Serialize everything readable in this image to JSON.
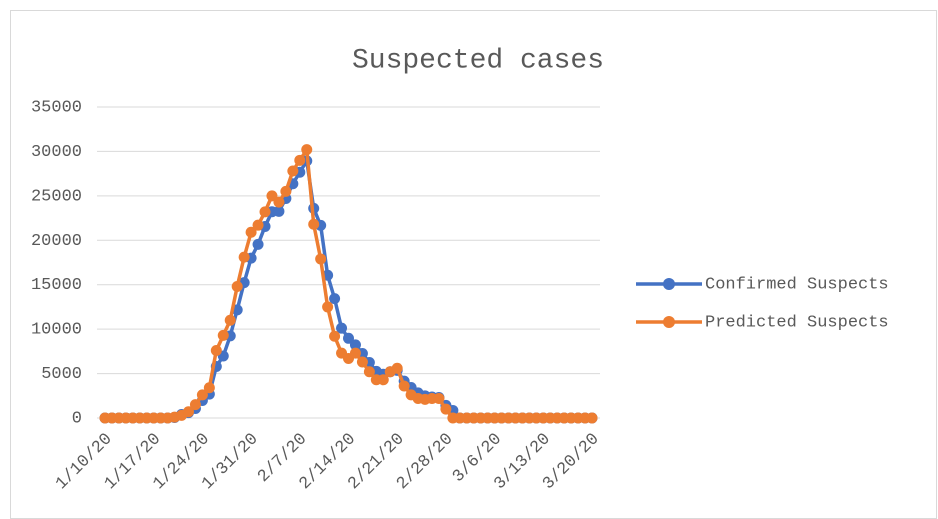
{
  "chart_data": {
    "type": "line",
    "title": "Suspected cases",
    "categories": [
      "1/10/20",
      null,
      null,
      null,
      null,
      null,
      null,
      "1/17/20",
      null,
      null,
      null,
      null,
      null,
      null,
      "1/24/20",
      null,
      null,
      null,
      null,
      null,
      null,
      "1/31/20",
      null,
      null,
      null,
      null,
      null,
      null,
      "2/7/20",
      null,
      null,
      null,
      null,
      null,
      null,
      "2/14/20",
      null,
      null,
      null,
      null,
      null,
      null,
      "2/21/20",
      null,
      null,
      null,
      null,
      null,
      null,
      "2/28/20",
      null,
      null,
      null,
      null,
      null,
      null,
      "3/6/20",
      null,
      null,
      null,
      null,
      null,
      null,
      "3/13/20",
      null,
      null,
      null,
      null,
      null,
      null,
      "3/20/20"
    ],
    "series": [
      {
        "name": "Confirmed Suspects",
        "color": "#4472c4",
        "values": [
          0,
          0,
          0,
          0,
          0,
          0,
          0,
          0,
          0,
          0,
          54,
          393,
          600,
          1072,
          1965,
          2684,
          5794,
          6973,
          9239,
          12167,
          15238,
          17988,
          19544,
          21558,
          23214,
          23260,
          24702,
          26359,
          27657,
          28942,
          23589,
          21675,
          16067,
          13435,
          10109,
          8969,
          8228,
          7264,
          6242,
          5248,
          4922,
          5206,
          5365,
          4148,
          3434,
          2824,
          2491,
          2358,
          2308,
          1418,
          851,
          0,
          0,
          0,
          0,
          0,
          0,
          0,
          0,
          0,
          0,
          0,
          0,
          0,
          0,
          0,
          0,
          0,
          0,
          0,
          0
        ]
      },
      {
        "name": "Predicted Suspects",
        "color": "#ed7d31",
        "values": [
          0,
          0,
          0,
          0,
          0,
          0,
          0,
          0,
          0,
          0,
          100,
          300,
          700,
          1500,
          2600,
          3400,
          7600,
          9300,
          11000,
          14800,
          18100,
          20900,
          21700,
          23200,
          25000,
          24300,
          25500,
          27800,
          29000,
          30200,
          21800,
          17900,
          12500,
          9200,
          7300,
          6700,
          7300,
          6300,
          5200,
          4300,
          4300,
          5200,
          5600,
          3600,
          2600,
          2200,
          2100,
          2200,
          2200,
          1000,
          0,
          0,
          0,
          0,
          0,
          0,
          0,
          0,
          0,
          0,
          0,
          0,
          0,
          0,
          0,
          0,
          0,
          0,
          0,
          0,
          0
        ]
      }
    ],
    "ylim": [
      0,
      35000
    ],
    "yticks": [
      0,
      5000,
      10000,
      15000,
      20000,
      25000,
      30000,
      35000
    ],
    "grid": true,
    "legend": "right"
  }
}
